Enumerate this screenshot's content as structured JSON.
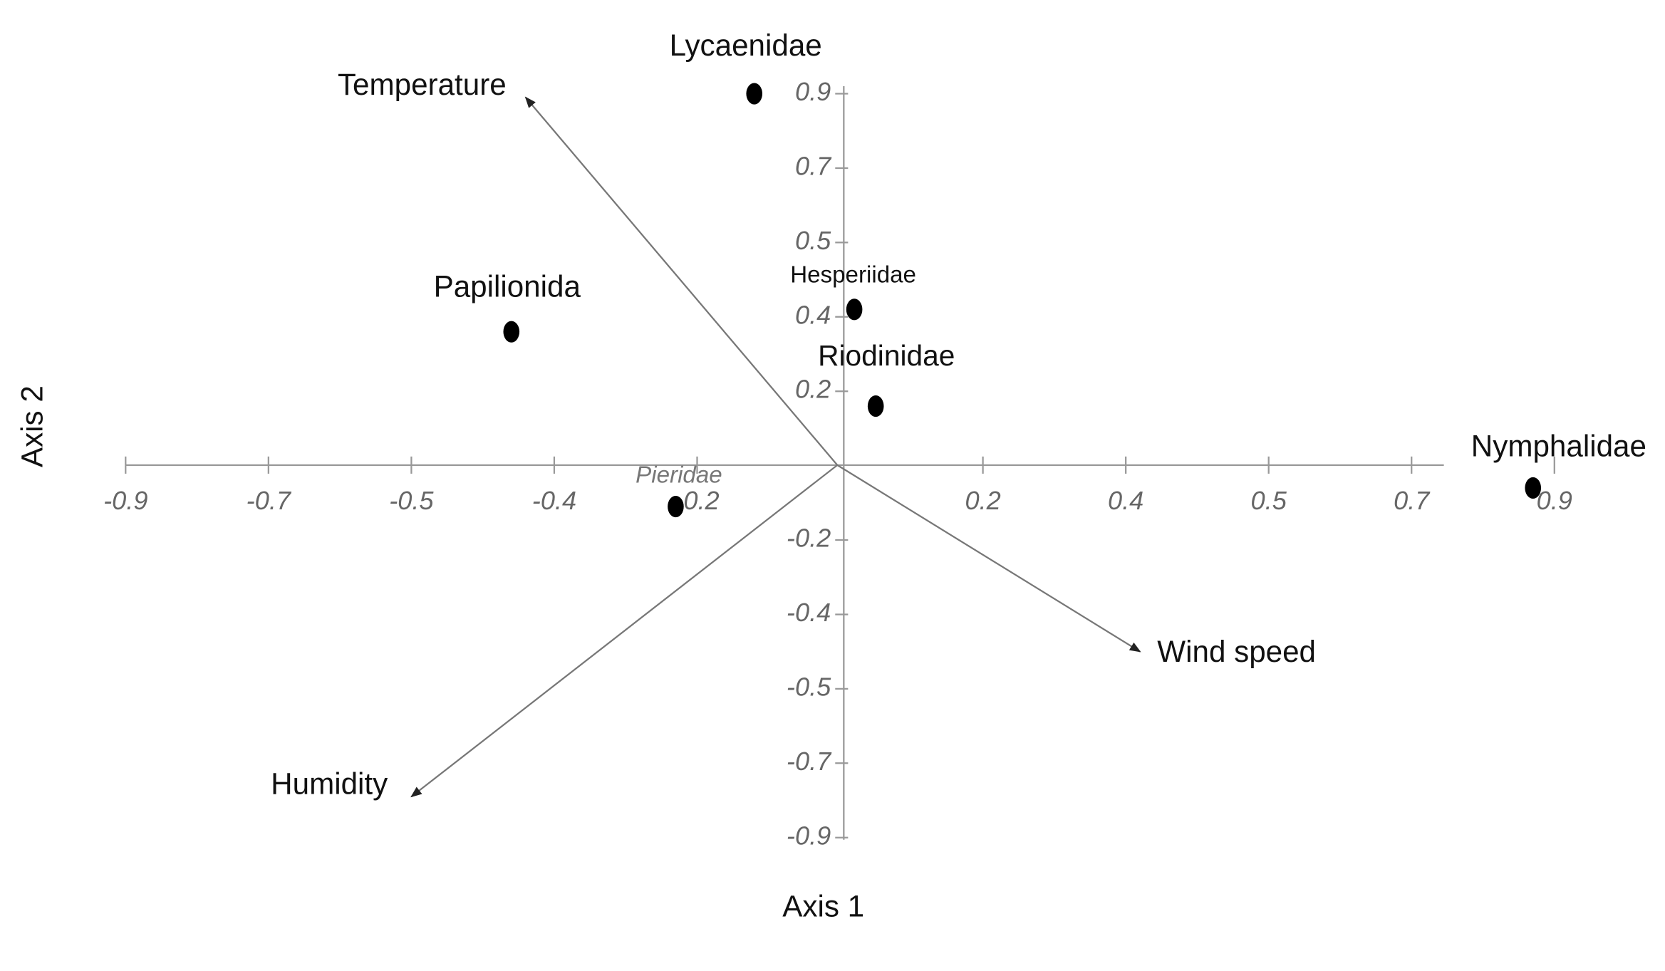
{
  "chart_data": {
    "type": "biplot",
    "x_label": "Axis 1",
    "y_label": "Axis 2",
    "xticks": [
      -0.9,
      -0.7,
      -0.5,
      -0.4,
      -0.2,
      0.2,
      0.4,
      0.5,
      0.7,
      0.9
    ],
    "yticks": [
      0.9,
      0.7,
      0.5,
      0.4,
      0.2,
      -0.2,
      -0.4,
      -0.5,
      -0.7,
      -0.9
    ],
    "color": "#000000",
    "axis_color": "#999999",
    "points": {
      "names": [
        "Lycaenidae",
        "Papilionida",
        "Hesperiidae",
        "Riodinidae",
        "Pieridae",
        "Nymphalidae"
      ],
      "x": [
        -0.12,
        -0.43,
        0.02,
        0.05,
        -0.23,
        0.87
      ],
      "y": [
        0.9,
        0.36,
        0.41,
        0.16,
        -0.11,
        -0.06
      ]
    },
    "vectors": {
      "names": [
        "Temperature",
        "Humidity",
        "Wind speed"
      ],
      "x": [
        -0.42,
        -0.5,
        0.41
      ],
      "y": [
        0.89,
        -0.79,
        -0.45
      ]
    }
  }
}
